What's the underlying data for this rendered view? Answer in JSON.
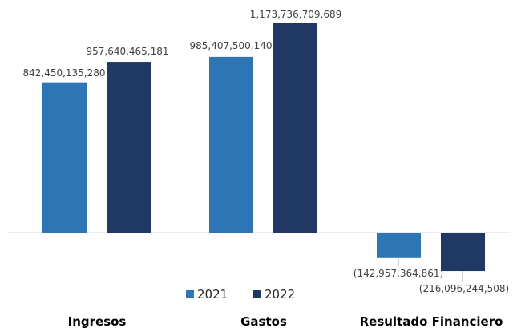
{
  "chart_data": {
    "type": "bar",
    "categories": [
      "Ingresos",
      "Gastos",
      "Resultado Financiero"
    ],
    "series": [
      {
        "name": "2021",
        "color": "#2E75B6",
        "values": [
          842450135280,
          985407500140,
          -142957364861
        ],
        "labels": [
          "842,450,135,280",
          "985,407,500,140",
          "(142,957,364,861)"
        ]
      },
      {
        "name": "2022",
        "color": "#203864",
        "values": [
          957640465181,
          1173736709689,
          -216096244508
        ],
        "labels": [
          "957,640,465,181",
          "1,173,736,709,689",
          "(216,096,244,508)"
        ]
      }
    ],
    "baseline_color": "#D9D9D9",
    "legend_position": "bottom",
    "grid": false
  }
}
